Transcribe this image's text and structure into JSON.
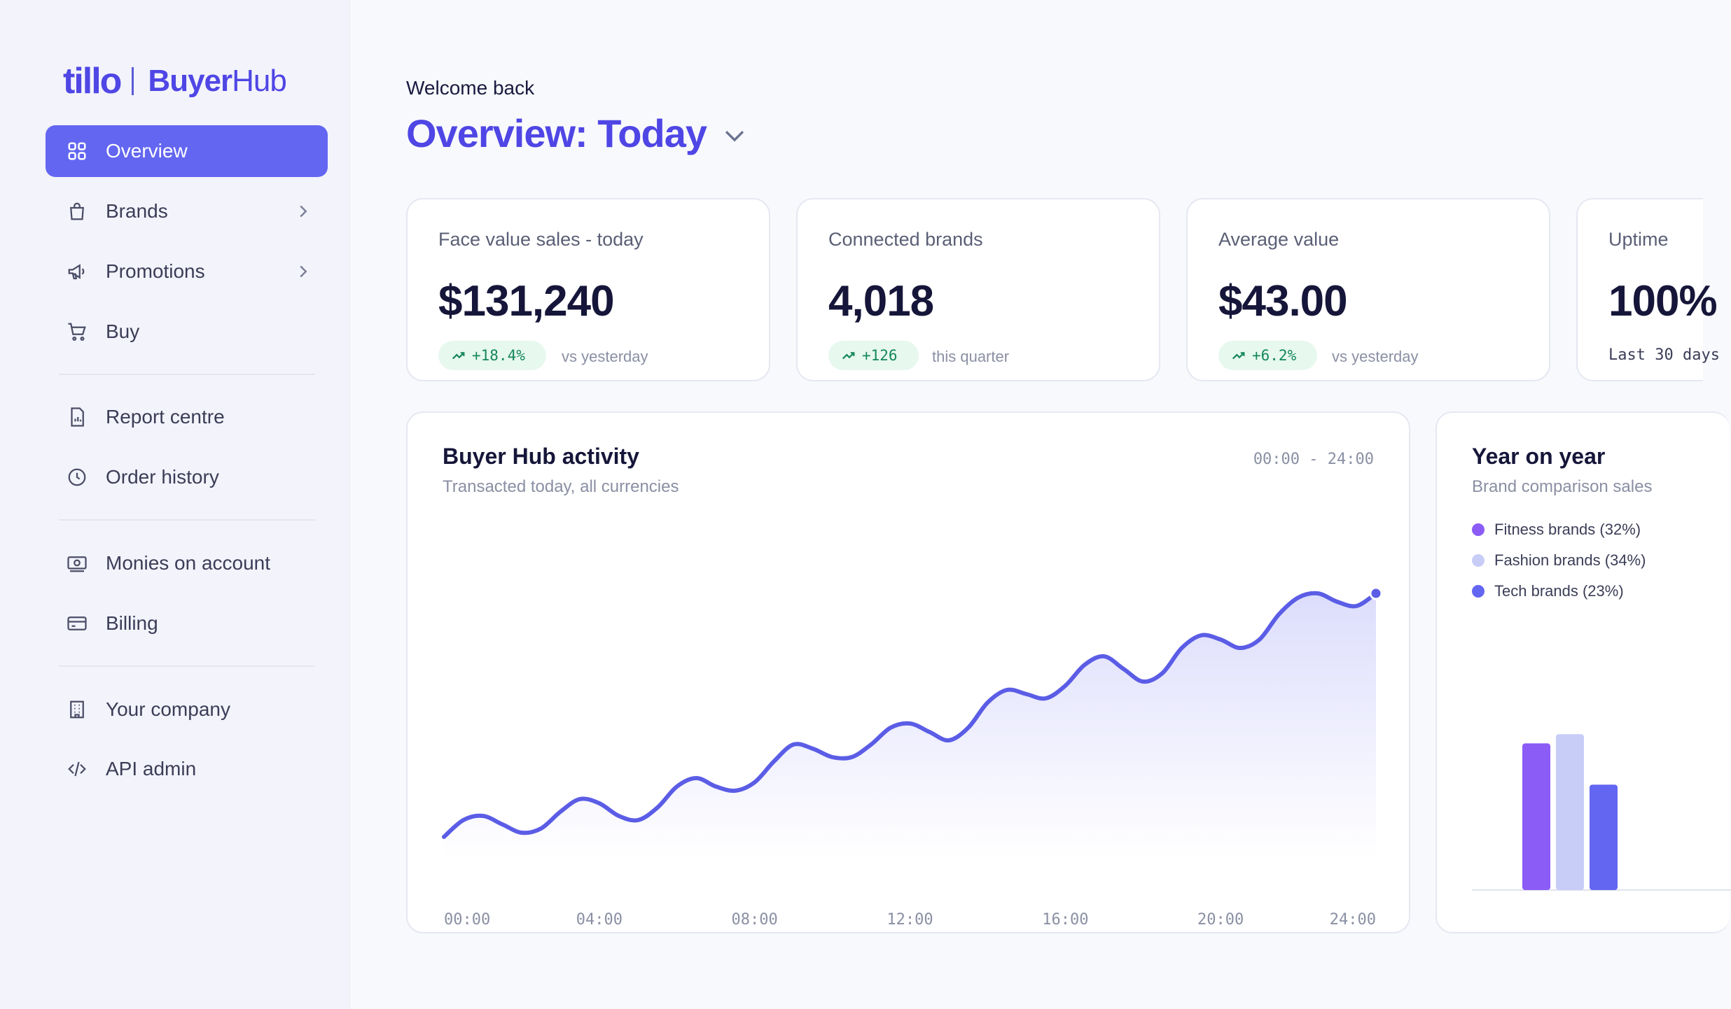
{
  "brand": {
    "logo_left": "tillo",
    "logo_buyer": "Buyer",
    "logo_hub": "Hub"
  },
  "sidebar": {
    "items": [
      {
        "label": "Overview",
        "icon": "grid-icon",
        "active": true
      },
      {
        "label": "Brands",
        "icon": "shopping-bag-icon",
        "has_children": true
      },
      {
        "label": "Promotions",
        "icon": "megaphone-icon",
        "has_children": true
      },
      {
        "label": "Buy",
        "icon": "cart-icon"
      },
      {
        "label": "Report centre",
        "icon": "report-icon"
      },
      {
        "label": "Order history",
        "icon": "clock-icon"
      },
      {
        "label": "Monies on account",
        "icon": "cash-icon"
      },
      {
        "label": "Billing",
        "icon": "credit-card-icon"
      },
      {
        "label": "Your company",
        "icon": "building-icon"
      },
      {
        "label": "API admin",
        "icon": "code-icon"
      }
    ]
  },
  "header": {
    "welcome": "Welcome back",
    "title": "Overview: Today"
  },
  "kpis": [
    {
      "label": "Face value sales - today",
      "value": "$131,240",
      "badge": "+18.4%",
      "note": "vs yesterday"
    },
    {
      "label": "Connected brands",
      "value": "4,018",
      "badge": "+126",
      "note": "this quarter"
    },
    {
      "label": "Average value",
      "value": "$43.00",
      "badge": "+6.2%",
      "note": "vs yesterday"
    },
    {
      "label": "Uptime",
      "value": "100%",
      "note": "Last 30 days"
    }
  ],
  "activity": {
    "title": "Buyer Hub activity",
    "subtitle": "Transacted today, all currencies",
    "range": "00:00 - 24:00"
  },
  "yoy": {
    "title": "Year on year",
    "subtitle": "Brand comparison sales",
    "legend": [
      {
        "label": "Fitness brands (32%)",
        "color": "#8b5cf6"
      },
      {
        "label": "Fashion brands (34%)",
        "color": "#c7cdf7"
      },
      {
        "label": "Tech brands (23%)",
        "color": "#6366f1"
      }
    ]
  },
  "colors": {
    "accent": "#6366f1",
    "brand": "#4f46e5",
    "positive": "#14875a"
  },
  "chart_data": [
    {
      "type": "area",
      "x_ticks": [
        "00:00",
        "04:00",
        "08:00",
        "12:00",
        "16:00",
        "20:00",
        "24:00"
      ],
      "x": [
        0,
        0.5,
        1,
        1.5,
        2,
        2.5,
        3,
        3.5,
        4,
        4.5,
        5,
        5.5,
        6,
        6.5,
        7,
        7.5,
        8,
        8.5,
        9,
        9.5,
        10,
        10.5,
        11,
        11.5,
        12,
        12.5,
        13,
        13.5,
        14,
        14.5,
        15,
        15.5,
        16,
        16.5,
        17,
        17.5,
        18,
        18.5,
        19,
        19.5,
        20,
        20.5,
        21,
        21.5,
        22,
        22.5,
        23,
        23.5,
        24
      ],
      "values": [
        5,
        9,
        10,
        8,
        6,
        7,
        11,
        14,
        13,
        10,
        9,
        12,
        17,
        19,
        17,
        16,
        18,
        23,
        27,
        26,
        24,
        24,
        27,
        31,
        32,
        30,
        28,
        31,
        37,
        40,
        39,
        38,
        41,
        46,
        48,
        45,
        42,
        44,
        50,
        53,
        52,
        50,
        52,
        58,
        62,
        63,
        61,
        60,
        63
      ],
      "ylim": [
        0,
        70
      ],
      "grid": false,
      "series": [
        {
          "values_ref": "values"
        }
      ]
    },
    {
      "type": "bar",
      "categories": [
        "Fitness brands",
        "Fashion brands",
        "Tech brands"
      ],
      "values": [
        32,
        34,
        23
      ],
      "ylim": [
        0,
        40
      ]
    }
  ]
}
